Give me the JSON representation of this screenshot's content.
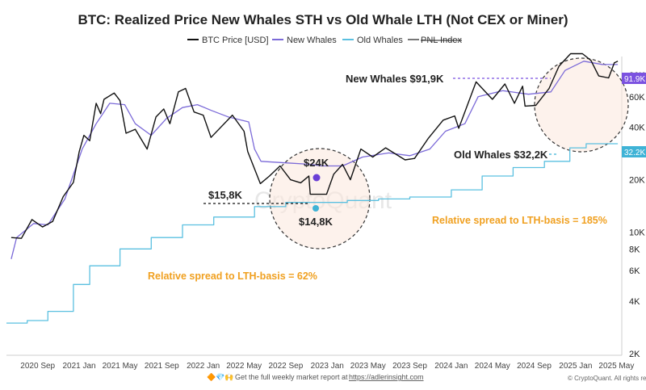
{
  "chart_data": {
    "type": "line",
    "title": "BTC: Realized Price New Whales STH vs Old Whale LTH (Not CEX or Miner)",
    "legend": [
      "BTC Price [USD]",
      "New Whales",
      "Old Whales",
      "PNL Index"
    ],
    "legend_placement": "top-center",
    "y_scale": "log",
    "ylim": [
      2000,
      100000
    ],
    "y_ticks": [
      {
        "label": "2K",
        "value": 2000
      },
      {
        "label": "4K",
        "value": 4000
      },
      {
        "label": "6K",
        "value": 6000
      },
      {
        "label": "8K",
        "value": 8000
      },
      {
        "label": "10K",
        "value": 10000
      },
      {
        "label": "20K",
        "value": 20000
      },
      {
        "label": "40K",
        "value": 40000
      },
      {
        "label": "60K",
        "value": 60000
      },
      {
        "label": "80K",
        "value": 80000
      }
    ],
    "x_ticks": [
      "2020 Sep",
      "2021 Jan",
      "2021 May",
      "2021 Sep",
      "2022 Jan",
      "2022 May",
      "2022 Sep",
      "2023 Jan",
      "2023 May",
      "2023 Sep",
      "2024 Jan",
      "2024 May",
      "2024 Sep",
      "2025 Jan",
      "2025 May"
    ],
    "series": [
      {
        "name": "BTC Price [USD]",
        "color": "#111111",
        "points": [
          [
            "2020-06-15",
            9300
          ],
          [
            "2020-07-15",
            9200
          ],
          [
            "2020-08-15",
            11800
          ],
          [
            "2020-09-15",
            10700
          ],
          [
            "2020-10-15",
            11500
          ],
          [
            "2020-11-15",
            16000
          ],
          [
            "2020-12-15",
            19300
          ],
          [
            "2021-01-01",
            29000
          ],
          [
            "2021-01-15",
            36000
          ],
          [
            "2021-02-01",
            33500
          ],
          [
            "2021-02-20",
            55000
          ],
          [
            "2021-03-05",
            48000
          ],
          [
            "2021-03-15",
            58000
          ],
          [
            "2021-04-14",
            63000
          ],
          [
            "2021-05-01",
            57000
          ],
          [
            "2021-05-19",
            37000
          ],
          [
            "2021-06-15",
            39000
          ],
          [
            "2021-07-20",
            30000
          ],
          [
            "2021-08-15",
            46000
          ],
          [
            "2021-09-07",
            51000
          ],
          [
            "2021-09-25",
            42000
          ],
          [
            "2021-10-20",
            64000
          ],
          [
            "2021-11-10",
            67000
          ],
          [
            "2021-12-05",
            49000
          ],
          [
            "2022-01-01",
            47000
          ],
          [
            "2022-01-24",
            35000
          ],
          [
            "2022-03-28",
            47000
          ],
          [
            "2022-05-01",
            38000
          ],
          [
            "2022-05-12",
            29000
          ],
          [
            "2022-06-18",
            19000
          ],
          [
            "2022-07-15",
            21000
          ],
          [
            "2022-08-15",
            24000
          ],
          [
            "2022-09-15",
            20000
          ],
          [
            "2022-10-15",
            19200
          ],
          [
            "2022-11-08",
            21000
          ],
          [
            "2022-11-12",
            16500
          ],
          [
            "2022-12-30",
            16500
          ],
          [
            "2023-01-20",
            21500
          ],
          [
            "2023-02-15",
            24500
          ],
          [
            "2023-03-10",
            20000
          ],
          [
            "2023-04-10",
            30000
          ],
          [
            "2023-05-15",
            27000
          ],
          [
            "2023-06-22",
            30500
          ],
          [
            "2023-08-18",
            26000
          ],
          [
            "2023-09-15",
            26500
          ],
          [
            "2023-10-25",
            34500
          ],
          [
            "2023-12-08",
            44000
          ],
          [
            "2024-01-11",
            46500
          ],
          [
            "2024-01-23",
            39500
          ],
          [
            "2024-03-14",
            73000
          ],
          [
            "2024-05-01",
            58000
          ],
          [
            "2024-06-07",
            71000
          ],
          [
            "2024-07-05",
            55000
          ],
          [
            "2024-07-29",
            69000
          ],
          [
            "2024-08-05",
            53000
          ],
          [
            "2024-09-06",
            53500
          ],
          [
            "2024-10-15",
            67000
          ],
          [
            "2024-11-13",
            90000
          ],
          [
            "2024-12-17",
            106000
          ],
          [
            "2025-01-21",
            106000
          ],
          [
            "2025-02-15",
            97000
          ],
          [
            "2025-03-10",
            79000
          ],
          [
            "2025-04-08",
            77000
          ],
          [
            "2025-04-25",
            94000
          ],
          [
            "2025-05-05",
            96000
          ]
        ]
      },
      {
        "name": "New Whales",
        "color": "#7b6ad8",
        "points": [
          [
            "2020-06-15",
            7000
          ],
          [
            "2020-07-01",
            9300
          ],
          [
            "2020-08-20",
            11200
          ],
          [
            "2020-10-01",
            11000
          ],
          [
            "2020-11-20",
            15500
          ],
          [
            "2021-01-10",
            30000
          ],
          [
            "2021-02-20",
            42000
          ],
          [
            "2021-04-01",
            55000
          ],
          [
            "2021-05-15",
            54000
          ],
          [
            "2021-06-15",
            42000
          ],
          [
            "2021-08-01",
            36000
          ],
          [
            "2021-09-15",
            45000
          ],
          [
            "2021-11-01",
            52000
          ],
          [
            "2021-12-15",
            54000
          ],
          [
            "2022-01-25",
            50000
          ],
          [
            "2022-03-15",
            46000
          ],
          [
            "2022-05-15",
            43000
          ],
          [
            "2022-06-01",
            30000
          ],
          [
            "2022-06-20",
            25500
          ],
          [
            "2022-09-01",
            25000
          ],
          [
            "2022-11-15",
            24500
          ],
          [
            "2022-12-15",
            24000
          ],
          [
            "2023-02-15",
            24000
          ],
          [
            "2023-04-15",
            27000
          ],
          [
            "2023-07-01",
            28500
          ],
          [
            "2023-09-01",
            27500
          ],
          [
            "2023-10-30",
            30000
          ],
          [
            "2023-12-15",
            38000
          ],
          [
            "2024-02-10",
            42000
          ],
          [
            "2024-03-20",
            60000
          ],
          [
            "2024-06-01",
            65000
          ],
          [
            "2024-08-15",
            62000
          ],
          [
            "2024-10-20",
            64000
          ],
          [
            "2024-12-01",
            85000
          ],
          [
            "2025-01-25",
            96000
          ],
          [
            "2025-03-20",
            92000
          ],
          [
            "2025-05-05",
            91900
          ]
        ]
      },
      {
        "name": "Old Whales",
        "color": "#5bc0e0",
        "points": [
          [
            "2020-06-01",
            3000
          ],
          [
            "2020-08-01",
            3100
          ],
          [
            "2020-10-01",
            3500
          ],
          [
            "2020-12-15",
            5000
          ],
          [
            "2021-02-01",
            6400
          ],
          [
            "2021-05-01",
            8000
          ],
          [
            "2021-08-01",
            9300
          ],
          [
            "2021-11-01",
            11000
          ],
          [
            "2022-02-01",
            12200
          ],
          [
            "2022-06-01",
            14000
          ],
          [
            "2022-09-01",
            14800
          ],
          [
            "2022-12-01",
            14800
          ],
          [
            "2023-03-01",
            15200
          ],
          [
            "2023-06-01",
            15500
          ],
          [
            "2023-09-01",
            15900
          ],
          [
            "2024-01-01",
            17500
          ],
          [
            "2024-04-01",
            21000
          ],
          [
            "2024-07-01",
            23500
          ],
          [
            "2024-10-01",
            25500
          ],
          [
            "2024-12-15",
            30500
          ],
          [
            "2025-02-01",
            32200
          ],
          [
            "2025-05-05",
            32200
          ]
        ]
      }
    ],
    "annotations": [
      {
        "text": "New Whales $91,9K",
        "type": "label"
      },
      {
        "text": "Old Whales $32,2K",
        "type": "label"
      },
      {
        "text": "$24K",
        "type": "label"
      },
      {
        "text": "$15,8K",
        "type": "label"
      },
      {
        "text": "$14,8K",
        "type": "label"
      },
      {
        "text": "Relative spread to LTH-basis = 185%",
        "type": "label"
      },
      {
        "text": "Relative spread to LTH-basis = 62%",
        "type": "label"
      }
    ],
    "badges": [
      {
        "text": "91.9K",
        "color": "#7b52e0"
      },
      {
        "text": "32.2K",
        "color": "#3fb3d6"
      }
    ]
  },
  "watermark": "CryptoQuant",
  "footer": {
    "emojis": "🔶💎🙌",
    "text": "Get the full weekly market report at",
    "link": "https://adlerinsight.com"
  },
  "credit": "© CryptoQuant. All rights reserved"
}
